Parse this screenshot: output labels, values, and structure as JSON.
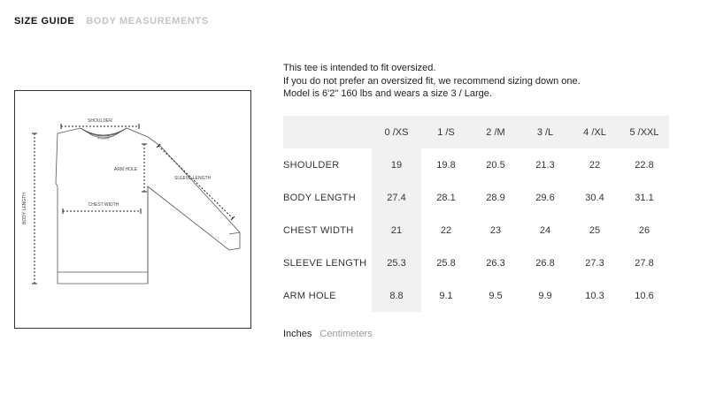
{
  "tabs": [
    {
      "label": "SIZE GUIDE",
      "active": true
    },
    {
      "label": "BODY MEASUREMENTS",
      "active": false
    }
  ],
  "intro": {
    "line1": "This tee is intended to fit oversized.",
    "line2": "If you do not prefer an oversized fit, we recommend sizing down one.",
    "line3": "Model is 6'2\" 160 lbs and wears a size 3 / Large."
  },
  "diagram": {
    "shoulder": "SHOULDER",
    "arm_hole": "ARM HOLE",
    "sleeve_length": "SLEEVE LENGTH",
    "chest_width": "CHEST WIDTH",
    "body_length": "BODY LENGTH"
  },
  "table": {
    "headers": [
      "0 /XS",
      "1 /S",
      "2 /M",
      "3 /L",
      "4 /XL",
      "5 /XXL"
    ],
    "rows": [
      {
        "label": "SHOULDER",
        "values": [
          "19",
          "19.8",
          "20.5",
          "21.3",
          "22",
          "22.8"
        ]
      },
      {
        "label": "BODY LENGTH",
        "values": [
          "27.4",
          "28.1",
          "28.9",
          "29.6",
          "30.4",
          "31.1"
        ]
      },
      {
        "label": "CHEST WIDTH",
        "values": [
          "21",
          "22",
          "23",
          "24",
          "25",
          "26"
        ]
      },
      {
        "label": "SLEEVE LENGTH",
        "values": [
          "25.3",
          "25.8",
          "26.3",
          "26.8",
          "27.3",
          "27.8"
        ]
      },
      {
        "label": "ARM HOLE",
        "values": [
          "8.8",
          "9.1",
          "9.5",
          "9.9",
          "10.3",
          "10.6"
        ]
      }
    ]
  },
  "units": [
    {
      "label": "Inches",
      "active": true
    },
    {
      "label": "Centimeters",
      "active": false
    }
  ]
}
